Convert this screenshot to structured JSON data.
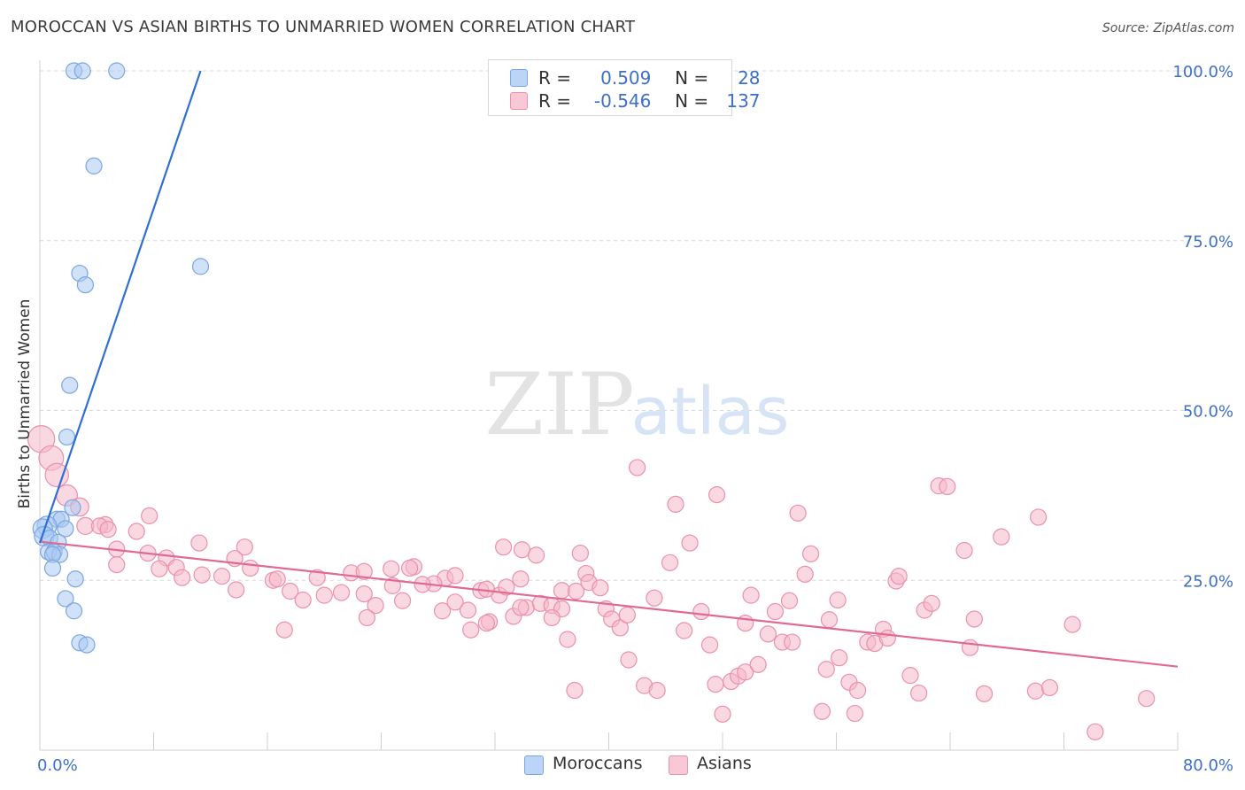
{
  "title": "MOROCCAN VS ASIAN BIRTHS TO UNMARRIED WOMEN CORRELATION CHART",
  "source": "Source: ZipAtlas.com",
  "watermark": {
    "zip": "ZIP",
    "atlas": "atlas"
  },
  "colors": {
    "blue_fill": "#a9c9f3",
    "blue_stroke": "#7aa7e0",
    "blue_line": "#2f6fd0",
    "pink_fill": "#f6b8cb",
    "pink_stroke": "#eb90ad",
    "pink_line": "#e06a95",
    "axis_text": "#3d6fc6",
    "grid": "#d9d9d9"
  },
  "legend_top": [
    {
      "series": "Moroccans",
      "r_label": "R =",
      "r_value": "0.509",
      "n_label": "N =",
      "n_value": "28"
    },
    {
      "series": "Asians",
      "r_label": "R =",
      "r_value": "-0.546",
      "n_label": "N =",
      "n_value": "137"
    }
  ],
  "legend_bottom": [
    "Moroccans",
    "Asians"
  ],
  "chart_data": {
    "type": "scatter",
    "title": "MOROCCAN VS ASIAN BIRTHS TO UNMARRIED WOMEN CORRELATION CHART",
    "xlabel": "",
    "ylabel": "Births to Unmarried Women",
    "xlim": [
      0,
      80
    ],
    "ylim": [
      0,
      100
    ],
    "x_tick_labels": [
      "0.0%",
      "80.0%"
    ],
    "y_tick_labels": [
      "25.0%",
      "50.0%",
      "75.0%",
      "100.0%"
    ],
    "y_ticks": [
      25,
      50,
      75,
      100
    ],
    "x_ticks_minor": [
      0,
      8,
      16,
      24,
      32,
      40,
      48,
      56,
      64,
      72,
      80
    ],
    "series": [
      {
        "name": "Moroccans",
        "color": "#a9c9f3",
        "trend": {
          "x": [
            0,
            11.3
          ],
          "y": [
            30.5,
            100
          ]
        },
        "points": [
          [
            2.4,
            100
          ],
          [
            3.0,
            100
          ],
          [
            5.4,
            100
          ],
          [
            3.8,
            86
          ],
          [
            11.3,
            71.2
          ],
          [
            2.8,
            70.2
          ],
          [
            3.2,
            68.5
          ],
          [
            2.1,
            53.7
          ],
          [
            1.9,
            46.1
          ],
          [
            2.3,
            35.7
          ],
          [
            1.2,
            34
          ],
          [
            1.5,
            34
          ],
          [
            0.5,
            33
          ],
          [
            0.2,
            32.6
          ],
          [
            1.8,
            32.6
          ],
          [
            0.3,
            31.5
          ],
          [
            0.7,
            31.2
          ],
          [
            1.3,
            30.6
          ],
          [
            0.6,
            29.2
          ],
          [
            1.0,
            29.2
          ],
          [
            1.4,
            28.8
          ],
          [
            0.9,
            28.8
          ],
          [
            0.9,
            26.8
          ],
          [
            2.5,
            25.2
          ],
          [
            1.8,
            22.3
          ],
          [
            2.4,
            20.5
          ],
          [
            2.8,
            15.8
          ],
          [
            3.3,
            15.5
          ]
        ]
      },
      {
        "name": "Asians",
        "color": "#f6b8cb",
        "trend": {
          "x": [
            0,
            80
          ],
          "y": [
            30.7,
            12.3
          ]
        },
        "points": [
          [
            0.1,
            45.8
          ],
          [
            0.8,
            43
          ],
          [
            1.2,
            40.5
          ],
          [
            1.9,
            37.5
          ],
          [
            2.8,
            35.8
          ],
          [
            3.2,
            33
          ],
          [
            4.6,
            33.2
          ],
          [
            4.2,
            33
          ],
          [
            4.8,
            32.5
          ],
          [
            7.7,
            34.5
          ],
          [
            6.8,
            32.2
          ],
          [
            11.2,
            30.5
          ],
          [
            14.4,
            29.9
          ],
          [
            5.4,
            29.6
          ],
          [
            7.6,
            29
          ],
          [
            8.9,
            28.3
          ],
          [
            13.7,
            28.2
          ],
          [
            5.4,
            27.3
          ],
          [
            8.4,
            26.7
          ],
          [
            9.6,
            26.9
          ],
          [
            14.8,
            26.8
          ],
          [
            10.0,
            25.4
          ],
          [
            11.4,
            25.8
          ],
          [
            12.8,
            25.6
          ],
          [
            16.4,
            25.0
          ],
          [
            16.7,
            25.2
          ],
          [
            13.8,
            23.6
          ],
          [
            17.6,
            23.4
          ],
          [
            21.9,
            26.1
          ],
          [
            19.5,
            25.4
          ],
          [
            24.7,
            26.7
          ],
          [
            22.8,
            26.3
          ],
          [
            26.3,
            27.0
          ],
          [
            26.0,
            26.8
          ],
          [
            28.5,
            25.3
          ],
          [
            27.7,
            24.5
          ],
          [
            29.2,
            25.7
          ],
          [
            18.5,
            22.1
          ],
          [
            20.0,
            22.8
          ],
          [
            21.2,
            23.2
          ],
          [
            22.8,
            23.0
          ],
          [
            23.6,
            21.3
          ],
          [
            25.5,
            22.0
          ],
          [
            23.0,
            19.5
          ],
          [
            24.8,
            24.2
          ],
          [
            26.9,
            24.4
          ],
          [
            31.0,
            23.5
          ],
          [
            32.3,
            22.8
          ],
          [
            32.8,
            24.0
          ],
          [
            33.8,
            25.2
          ],
          [
            34.2,
            21.0
          ],
          [
            33.3,
            19.7
          ],
          [
            31.6,
            18.9
          ],
          [
            30.3,
            17.7
          ],
          [
            17.2,
            17.7
          ],
          [
            28.3,
            20.5
          ],
          [
            29.2,
            21.8
          ],
          [
            30.1,
            20.6
          ],
          [
            31.4,
            18.7
          ],
          [
            33.8,
            21.0
          ],
          [
            31.4,
            23.7
          ],
          [
            32.6,
            29.9
          ],
          [
            33.9,
            29.5
          ],
          [
            34.9,
            28.7
          ],
          [
            35.2,
            21.6
          ],
          [
            36.0,
            21.3
          ],
          [
            36.7,
            20.8
          ],
          [
            36.0,
            19.5
          ],
          [
            38.0,
            29.0
          ],
          [
            38.4,
            26.0
          ],
          [
            38.6,
            24.7
          ],
          [
            37.1,
            16.3
          ],
          [
            36.7,
            23.5
          ],
          [
            37.7,
            23.4
          ],
          [
            39.4,
            23.9
          ],
          [
            39.8,
            20.8
          ],
          [
            40.2,
            19.3
          ],
          [
            40.8,
            18.0
          ],
          [
            41.3,
            19.9
          ],
          [
            42.0,
            41.6
          ],
          [
            41.4,
            13.3
          ],
          [
            42.5,
            9.5
          ],
          [
            37.6,
            8.8
          ],
          [
            43.2,
            22.4
          ],
          [
            43.4,
            8.8
          ],
          [
            44.3,
            27.6
          ],
          [
            44.7,
            36.2
          ],
          [
            45.3,
            17.6
          ],
          [
            45.7,
            30.5
          ],
          [
            46.5,
            20.4
          ],
          [
            47.1,
            15.5
          ],
          [
            47.5,
            9.7
          ],
          [
            47.6,
            37.6
          ],
          [
            48.0,
            5.3
          ],
          [
            48.6,
            10.1
          ],
          [
            49.1,
            10.9
          ],
          [
            49.6,
            11.5
          ],
          [
            49.6,
            18.7
          ],
          [
            50.0,
            22.8
          ],
          [
            50.5,
            12.6
          ],
          [
            51.2,
            17.1
          ],
          [
            51.7,
            20.4
          ],
          [
            52.2,
            15.9
          ],
          [
            52.7,
            22.0
          ],
          [
            52.9,
            15.9
          ],
          [
            53.3,
            34.9
          ],
          [
            53.8,
            25.9
          ],
          [
            54.2,
            28.9
          ],
          [
            55.0,
            5.7
          ],
          [
            55.3,
            11.9
          ],
          [
            55.5,
            19.2
          ],
          [
            56.1,
            22.1
          ],
          [
            56.2,
            13.6
          ],
          [
            56.9,
            10.0
          ],
          [
            57.3,
            5.4
          ],
          [
            57.5,
            8.8
          ],
          [
            58.2,
            15.9
          ],
          [
            58.7,
            15.7
          ],
          [
            59.3,
            17.8
          ],
          [
            59.6,
            16.5
          ],
          [
            60.2,
            24.9
          ],
          [
            60.4,
            25.6
          ],
          [
            61.2,
            11.0
          ],
          [
            61.8,
            8.4
          ],
          [
            62.2,
            20.6
          ],
          [
            62.7,
            21.6
          ],
          [
            63.2,
            38.9
          ],
          [
            63.8,
            38.8
          ],
          [
            65.0,
            29.4
          ],
          [
            65.4,
            15.1
          ],
          [
            65.7,
            19.3
          ],
          [
            66.4,
            8.3
          ],
          [
            67.6,
            31.4
          ],
          [
            70.0,
            8.7
          ],
          [
            70.2,
            34.3
          ],
          [
            71.0,
            9.2
          ],
          [
            72.6,
            18.5
          ],
          [
            74.2,
            2.7
          ],
          [
            77.8,
            7.6
          ]
        ]
      }
    ]
  }
}
